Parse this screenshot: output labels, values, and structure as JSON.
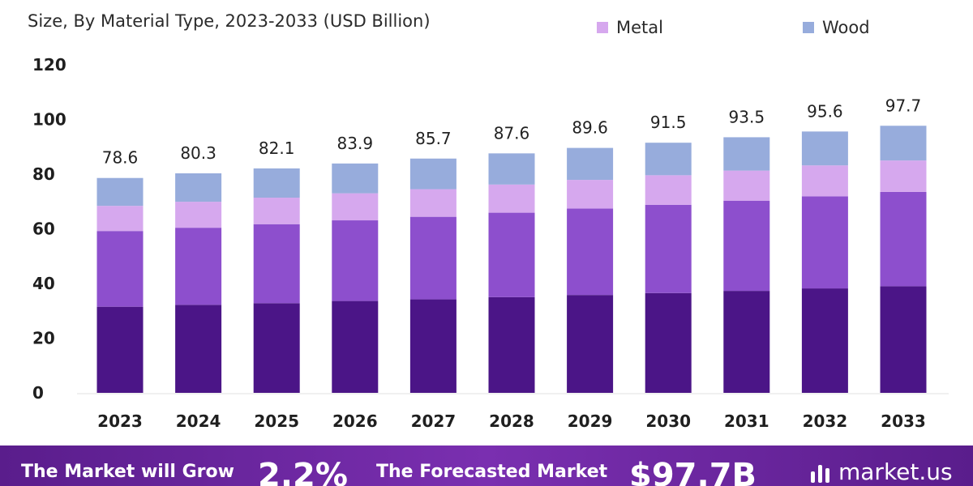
{
  "header": {
    "subtitle": "Size, By Material Type, 2023-2033 (USD Billion)"
  },
  "legend": [
    {
      "label": "Metal",
      "color": "#d6a8ee"
    },
    {
      "label": "Wood",
      "color": "#97acdc"
    }
  ],
  "chart_data": {
    "type": "bar",
    "stacked": true,
    "categories": [
      "2023",
      "2024",
      "2025",
      "2026",
      "2027",
      "2028",
      "2029",
      "2030",
      "2031",
      "2032",
      "2033"
    ],
    "totals": [
      "78.6",
      "80.3",
      "82.1",
      "83.9",
      "85.7",
      "87.6",
      "89.6",
      "91.5",
      "93.5",
      "95.6",
      "97.7"
    ],
    "series": [
      {
        "color": "#4b1587",
        "values": [
          31.5,
          32.2,
          32.8,
          33.6,
          34.2,
          35.0,
          35.8,
          36.5,
          37.3,
          38.2,
          39.0
        ]
      },
      {
        "color": "#8d4fcd",
        "values": [
          27.7,
          28.2,
          28.9,
          29.5,
          30.2,
          30.9,
          31.6,
          32.3,
          33.0,
          33.7,
          34.5
        ]
      },
      {
        "color": "#d6a8ee",
        "values": [
          9.2,
          9.5,
          9.7,
          9.9,
          10.1,
          10.3,
          10.5,
          10.8,
          11.0,
          11.3,
          11.5
        ]
      },
      {
        "label": "Wood",
        "name": "Wood",
        "color": "#97acdc",
        "values": [
          10.2,
          10.4,
          10.7,
          10.9,
          11.2,
          11.4,
          11.7,
          11.9,
          12.2,
          12.4,
          12.7
        ]
      }
    ],
    "y_ticks": [
      "0",
      "20",
      "40",
      "60",
      "80",
      "100",
      "120"
    ],
    "ylim": [
      0,
      120
    ],
    "grid": false
  },
  "footer": {
    "grow_text": "The Market will Grow",
    "cagr": "2.2%",
    "forecast_text": "The Forecasted Market",
    "forecast_value": "$97.7B",
    "brand": "market.us"
  }
}
